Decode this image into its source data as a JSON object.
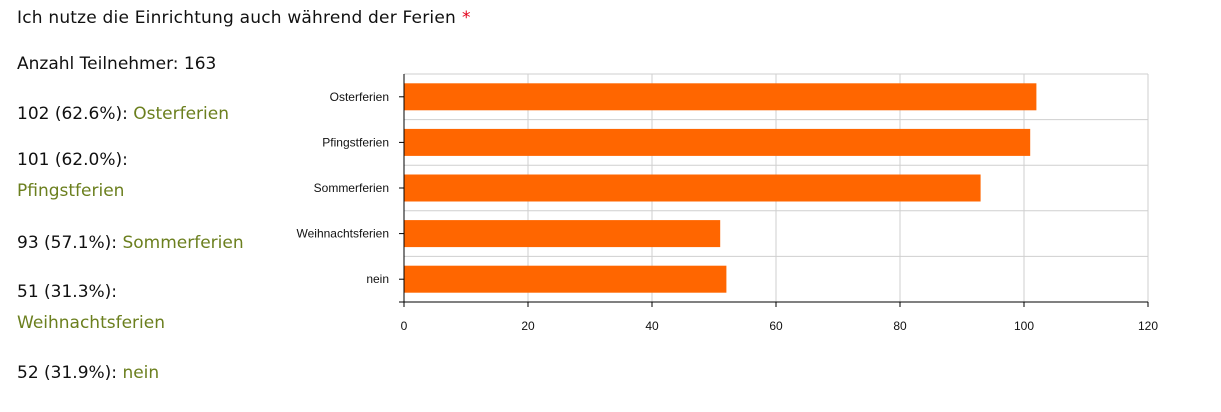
{
  "question": {
    "text": "Ich nutze die Einrichtung auch während der Ferien",
    "required_mark": "*"
  },
  "participants": {
    "label": "Anzahl Teilnehmer:",
    "count": "163"
  },
  "results": [
    {
      "count_pct": "102 (62.6%):",
      "label": "Osterferien"
    },
    {
      "count_pct": "101 (62.0%):",
      "label": "Pfingstferien"
    },
    {
      "count_pct": "93 (57.1%):",
      "label": "Sommerferien"
    },
    {
      "count_pct": "51 (31.3%):",
      "label": "Weihnachtsferien"
    },
    {
      "count_pct": "52 (31.9%):",
      "label": "nein"
    }
  ],
  "colors": {
    "bar": "#ff6600",
    "accent_label": "#6b7f1e",
    "required": "#e2001a"
  },
  "chart_data": {
    "type": "bar",
    "orientation": "horizontal",
    "categories": [
      "Osterferien",
      "Pfingstferien",
      "Sommerferien",
      "Weihnachtsferien",
      "nein"
    ],
    "values": [
      102,
      101,
      93,
      51,
      52
    ],
    "xlim": [
      0,
      120
    ],
    "xticks": [
      0,
      20,
      40,
      60,
      80,
      100,
      120
    ],
    "grid": true,
    "title": "",
    "xlabel": "",
    "ylabel": ""
  }
}
